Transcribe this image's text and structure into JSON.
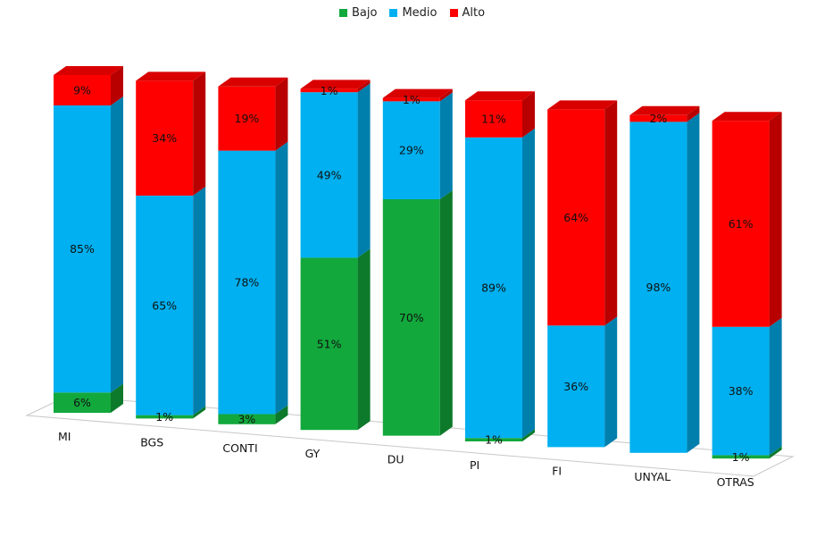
{
  "chart_data": {
    "type": "bar",
    "stacked": true,
    "percent": true,
    "three_d": true,
    "categories": [
      "MI",
      "BGS",
      "CONTI",
      "GY",
      "DU",
      "PI",
      "FI",
      "UNYAL",
      "OTRAS"
    ],
    "series": [
      {
        "name": "Bajo",
        "color": "#12A83C",
        "values": [
          6,
          1,
          3,
          51,
          70,
          1,
          0,
          0,
          1
        ]
      },
      {
        "name": "Medio",
        "color": "#00B0F0",
        "values": [
          85,
          65,
          78,
          49,
          29,
          89,
          36,
          98,
          38
        ]
      },
      {
        "name": "Alto",
        "color": "#FF0000",
        "values": [
          9,
          34,
          19,
          1,
          1,
          11,
          64,
          2,
          61
        ]
      }
    ],
    "data_labels": [
      [
        "6%",
        "1%",
        "3%",
        "51%",
        "70%",
        "1%",
        "",
        "",
        "1%"
      ],
      [
        "85%",
        "65%",
        "78%",
        "49%",
        "29%",
        "89%",
        "36%",
        "98%",
        "38%"
      ],
      [
        "9%",
        "34%",
        "19%",
        "1%",
        "1%",
        "11%",
        "64%",
        "2%",
        "61%"
      ]
    ],
    "legend_position": "top-center",
    "grid": false,
    "ylim": [
      0,
      100
    ]
  }
}
